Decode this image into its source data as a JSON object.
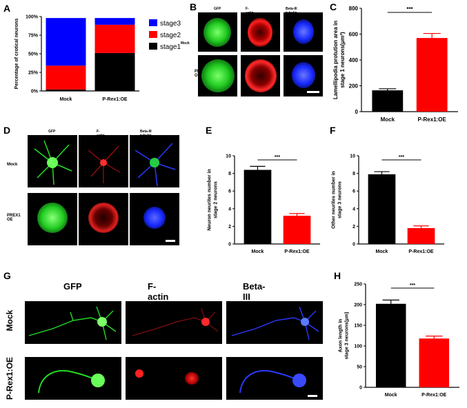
{
  "panels": {
    "A": "A",
    "B": "B",
    "C": "C",
    "D": "D",
    "E": "E",
    "F": "F",
    "G": "G",
    "H": "H"
  },
  "micrograph_labels": {
    "B_cols": [
      "GFP",
      "F-actin",
      "Beta-III tubulin"
    ],
    "B_rows": [
      "Mock",
      "PREX1 OE"
    ],
    "D_cols": [
      "GFP",
      "F-actin",
      "Beta-III tubulin"
    ],
    "D_rows": [
      "Mock",
      "PREX1 OE"
    ],
    "G_cols": [
      "GFP",
      "F-actin",
      "Beta-III tubulin"
    ],
    "G_rows": [
      "Mock",
      "P-Rex1:OE"
    ]
  },
  "colors": {
    "stage1": "#000000",
    "stage2": "#ff0000",
    "stage3": "#0000ff",
    "mock_bar": "#000000",
    "oe_bar": "#ff0000",
    "gfp": "#22dd22",
    "factin": "#ee1111",
    "tubulin": "#2233ff"
  },
  "chart_data": [
    {
      "id": "A",
      "type": "bar",
      "stacked": true,
      "categories": [
        "Mock",
        "P-Rex1:OE"
      ],
      "series": [
        {
          "name": "stage1",
          "values": [
            2,
            51
          ]
        },
        {
          "name": "stage2",
          "values": [
            32,
            38
          ]
        },
        {
          "name": "stage3",
          "values": [
            64,
            9
          ]
        }
      ],
      "ylabel": "Percentage of crotical neurons",
      "yticks": [
        "0%",
        "25%",
        "50%",
        "75%",
        "100%"
      ],
      "ylim": [
        0,
        100
      ],
      "legend_placement": "right"
    },
    {
      "id": "C",
      "type": "bar",
      "categories": [
        "Mock",
        "P-Rex1:OE"
      ],
      "values": [
        165,
        570
      ],
      "errors": [
        12,
        35
      ],
      "ylabel": "Lamellipodia protution area in stage 1 neurons(μm²)",
      "yticks": [
        "0",
        "200",
        "400",
        "600",
        "800"
      ],
      "ylim": [
        0,
        800
      ],
      "significance": "***"
    },
    {
      "id": "E",
      "type": "bar",
      "categories": [
        "Mock",
        "P-Rex1:OE"
      ],
      "values": [
        8.4,
        3.2
      ],
      "errors": [
        0.4,
        0.25
      ],
      "ylabel": "Neuron neurites number in stage 2 neurons",
      "yticks": [
        "0",
        "2",
        "4",
        "6",
        "8",
        "10"
      ],
      "ylim": [
        0,
        10
      ],
      "significance": "***"
    },
    {
      "id": "F",
      "type": "bar",
      "categories": [
        "Mock",
        "P-Rex1:OE"
      ],
      "values": [
        7.9,
        1.8
      ],
      "errors": [
        0.3,
        0.25
      ],
      "ylabel": "Other neurites number in stage 3 neurons",
      "yticks": [
        "0",
        "2",
        "4",
        "6",
        "8",
        "10"
      ],
      "ylim": [
        0,
        10
      ],
      "significance": "***"
    },
    {
      "id": "H",
      "type": "bar",
      "categories": [
        "Mock",
        "P-Rex1:OE"
      ],
      "values": [
        202,
        118
      ],
      "errors": [
        9,
        6
      ],
      "ylabel": "Axon length in stage 3 neurons(μm)",
      "yticks": [
        "0",
        "50",
        "100",
        "150",
        "200",
        "250"
      ],
      "ylim": [
        0,
        250
      ],
      "significance": "***"
    }
  ]
}
